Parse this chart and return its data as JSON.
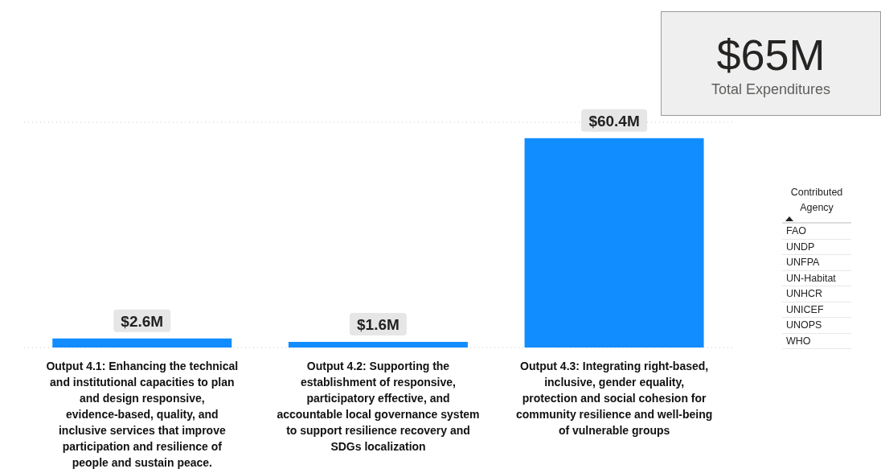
{
  "chart_data": [
    {
      "type": "bar",
      "categories": [
        "Output 4.1: Enhancing the technical and institutional capacities to plan and design responsive, evidence-based, quality, and inclusive services that improve participation and resilience of people and sustain peace.",
        "Output 4.2: Supporting the establishment of responsive, participatory effective, and accountable local governance system to support resilience recovery and SDGs localization",
        "Output 4.3: Integrating right-based, inclusive, gender equality, protection and social cohesion for community resilience and well-being of vulnerable groups"
      ],
      "values": [
        2.6,
        1.6,
        60.4
      ],
      "value_labels": [
        "$2.6M",
        "$1.6M",
        "$60.4M"
      ],
      "color": "#118dff",
      "ylim": [
        0,
        65
      ],
      "tick_labels": "x",
      "grid": "y"
    },
    {
      "type": "other",
      "title": "$65M",
      "subtitle": "Total Expenditures"
    },
    {
      "type": "other",
      "title": "Contributed Agency",
      "annotations": [
        "FAO",
        "UNDP",
        "UNFPA",
        "UN-Habitat",
        "UNHCR",
        "UNICEF",
        "UNOPS",
        "WHO"
      ]
    }
  ]
}
